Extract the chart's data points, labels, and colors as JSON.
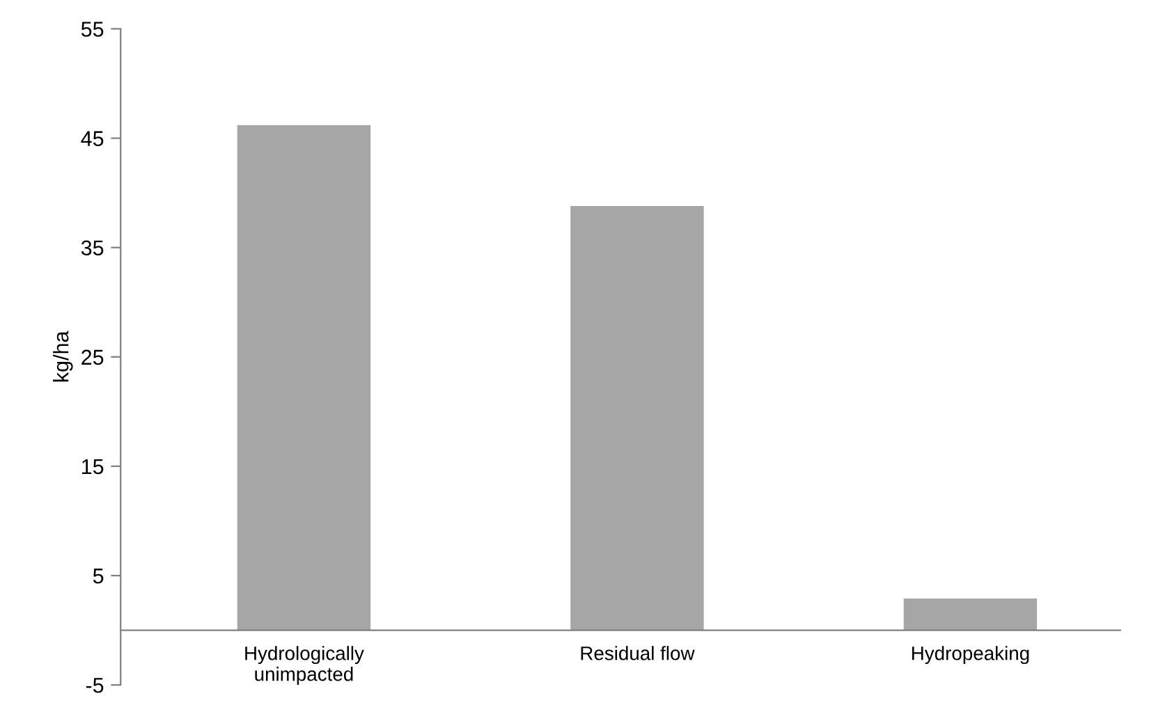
{
  "chart_data": {
    "type": "bar",
    "ylabel": "kg/ha",
    "categories": [
      "Hydrologically\nunimpacted",
      "Residual flow",
      "Hydropeaking"
    ],
    "values": [
      46.2,
      38.8,
      2.9
    ],
    "color": "#a6a6a6",
    "ylim": [
      -5,
      55
    ],
    "yticks": [
      -5,
      5,
      15,
      25,
      35,
      45,
      55
    ],
    "grid": false,
    "legend": false
  }
}
